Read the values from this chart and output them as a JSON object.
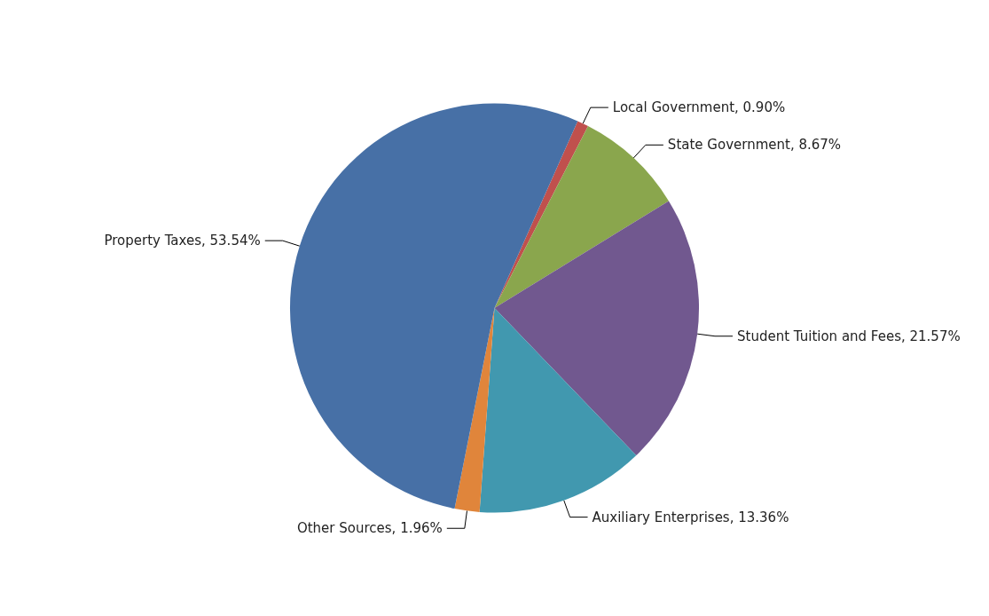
{
  "chart_data": {
    "type": "pie",
    "categories": [
      "Local Government",
      "State Government",
      "Student Tuition and Fees",
      "Auxiliary Enterprises",
      "Other Sources",
      "Property Taxes"
    ],
    "values": [
      0.9,
      8.67,
      21.57,
      13.36,
      1.96,
      53.54
    ],
    "value_labels": [
      "0.90%",
      "8.67%",
      "21.57%",
      "13.36%",
      "1.96%",
      "53.54%"
    ],
    "colors": [
      "#c0504d",
      "#8aa64d",
      "#71588f",
      "#4198af",
      "#e0853b",
      "#4770a6"
    ]
  }
}
